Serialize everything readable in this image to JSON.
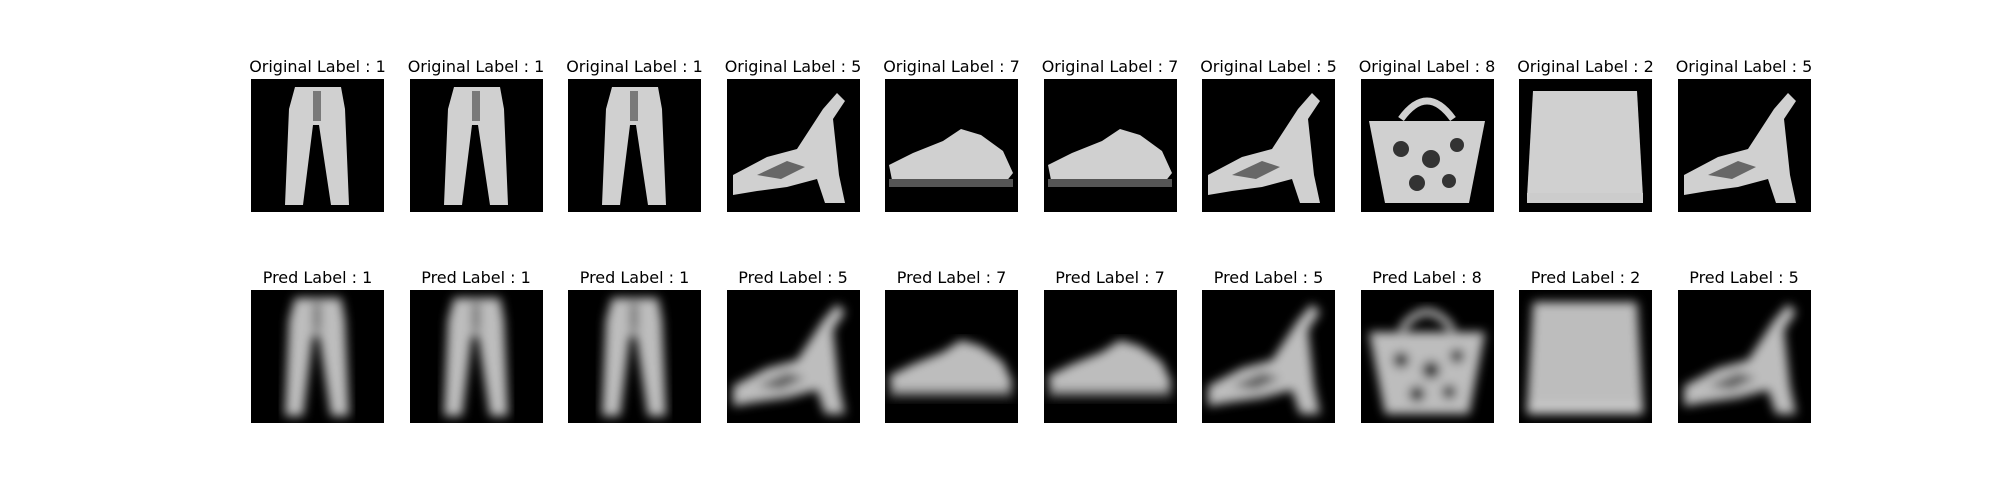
{
  "rows": [
    {
      "name": "original",
      "panels": [
        {
          "title": "Original Label : 1",
          "item": "trouser-icon"
        },
        {
          "title": "Original Label : 1",
          "item": "trouser-icon"
        },
        {
          "title": "Original Label : 1",
          "item": "trouser-icon"
        },
        {
          "title": "Original Label : 5",
          "item": "sandal-icon"
        },
        {
          "title": "Original Label : 7",
          "item": "sneaker-icon"
        },
        {
          "title": "Original Label : 7",
          "item": "sneaker-icon"
        },
        {
          "title": "Original Label : 5",
          "item": "sandal-icon"
        },
        {
          "title": "Original Label : 8",
          "item": "bag-icon"
        },
        {
          "title": "Original Label : 2",
          "item": "pullover-icon"
        },
        {
          "title": "Original Label : 5",
          "item": "sandal-icon"
        }
      ]
    },
    {
      "name": "pred",
      "panels": [
        {
          "title": "Pred Label : 1",
          "item": "trouser-icon"
        },
        {
          "title": "Pred Label : 1",
          "item": "trouser-icon"
        },
        {
          "title": "Pred Label : 1",
          "item": "trouser-icon"
        },
        {
          "title": "Pred Label : 5",
          "item": "sandal-icon"
        },
        {
          "title": "Pred Label : 7",
          "item": "sneaker-icon"
        },
        {
          "title": "Pred Label : 7",
          "item": "sneaker-icon"
        },
        {
          "title": "Pred Label : 5",
          "item": "sandal-icon"
        },
        {
          "title": "Pred Label : 8",
          "item": "bag-icon"
        },
        {
          "title": "Pred Label : 2",
          "item": "pullover-icon"
        },
        {
          "title": "Pred Label : 5",
          "item": "sandal-icon"
        }
      ]
    }
  ]
}
